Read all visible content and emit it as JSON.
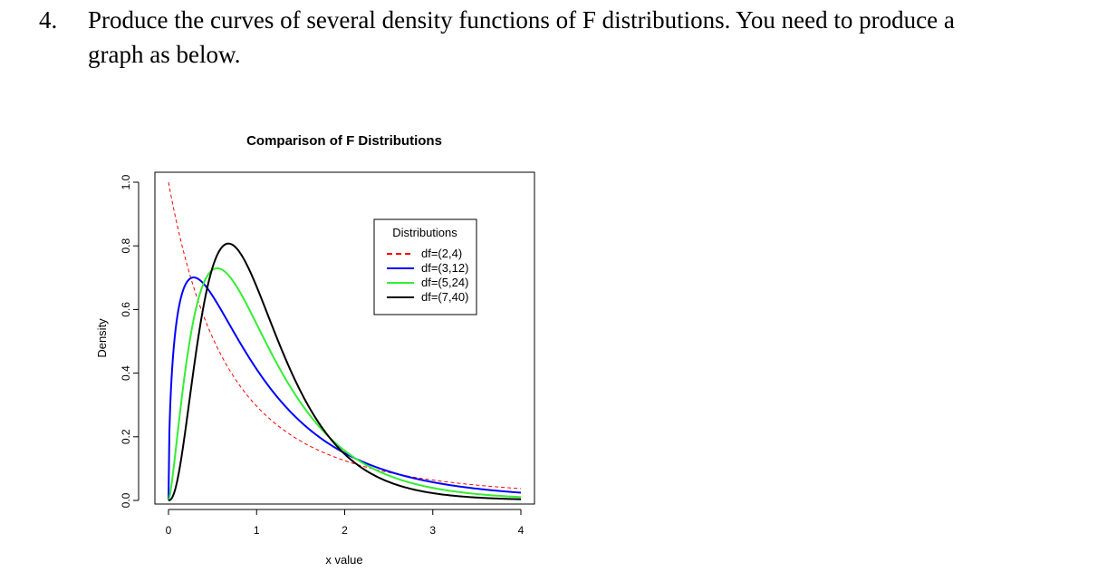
{
  "question": {
    "number": "4.",
    "line1": "Produce the curves of several density functions of F distributions. You need to produce a",
    "line2": "graph as below."
  },
  "chart_data": {
    "type": "line",
    "title": "Comparison of F Distributions",
    "xlabel": "x value",
    "ylabel": "Density",
    "xlim": [
      0,
      4
    ],
    "ylim": [
      0,
      1.0
    ],
    "x_ticks": [
      "0",
      "1",
      "2",
      "3",
      "4"
    ],
    "y_ticks": [
      "0.0",
      "0.2",
      "0.4",
      "0.6",
      "0.8",
      "1.0"
    ],
    "grid": false,
    "legend": {
      "title": "Distributions",
      "placement": "top-right",
      "entries": [
        "df=(2,4)",
        "df=(3,12)",
        "df=(5,24)",
        "df=(7,40)"
      ]
    },
    "series": [
      {
        "name": "df=(2,4)",
        "color": "#ff0000",
        "dashed": true,
        "df1": 2,
        "df2": 4,
        "x": [
          0.0,
          0.25,
          0.5,
          1.0,
          1.5,
          2.0,
          2.5,
          3.0,
          3.5,
          4.0
        ],
        "y": [
          1.0,
          0.7,
          0.51,
          0.3,
          0.19,
          0.13,
          0.09,
          0.06,
          0.05,
          0.04
        ]
      },
      {
        "name": "df=(3,12)",
        "color": "#0000ff",
        "dashed": false,
        "df1": 3,
        "df2": 12,
        "x": [
          0.0,
          0.1,
          0.29,
          0.5,
          1.0,
          1.5,
          2.0,
          2.5,
          3.0,
          3.5,
          4.0
        ],
        "y": [
          0.0,
          0.57,
          0.7,
          0.65,
          0.42,
          0.25,
          0.15,
          0.09,
          0.06,
          0.04,
          0.02
        ]
      },
      {
        "name": "df=(5,24)",
        "color": "#33ee33",
        "dashed": false,
        "df1": 5,
        "df2": 24,
        "x": [
          0.0,
          0.2,
          0.56,
          1.0,
          1.5,
          2.0,
          2.5,
          3.0,
          3.5,
          4.0
        ],
        "y": [
          0.0,
          0.45,
          0.73,
          0.59,
          0.32,
          0.15,
          0.07,
          0.03,
          0.015,
          0.01
        ]
      },
      {
        "name": "df=(7,40)",
        "color": "#000000",
        "dashed": false,
        "df1": 7,
        "df2": 40,
        "x": [
          0.0,
          0.2,
          0.5,
          0.68,
          1.0,
          1.5,
          2.0,
          2.5,
          3.0,
          3.5,
          4.0
        ],
        "y": [
          0.0,
          0.22,
          0.72,
          0.81,
          0.68,
          0.33,
          0.13,
          0.05,
          0.02,
          0.01,
          0.005
        ]
      }
    ]
  }
}
